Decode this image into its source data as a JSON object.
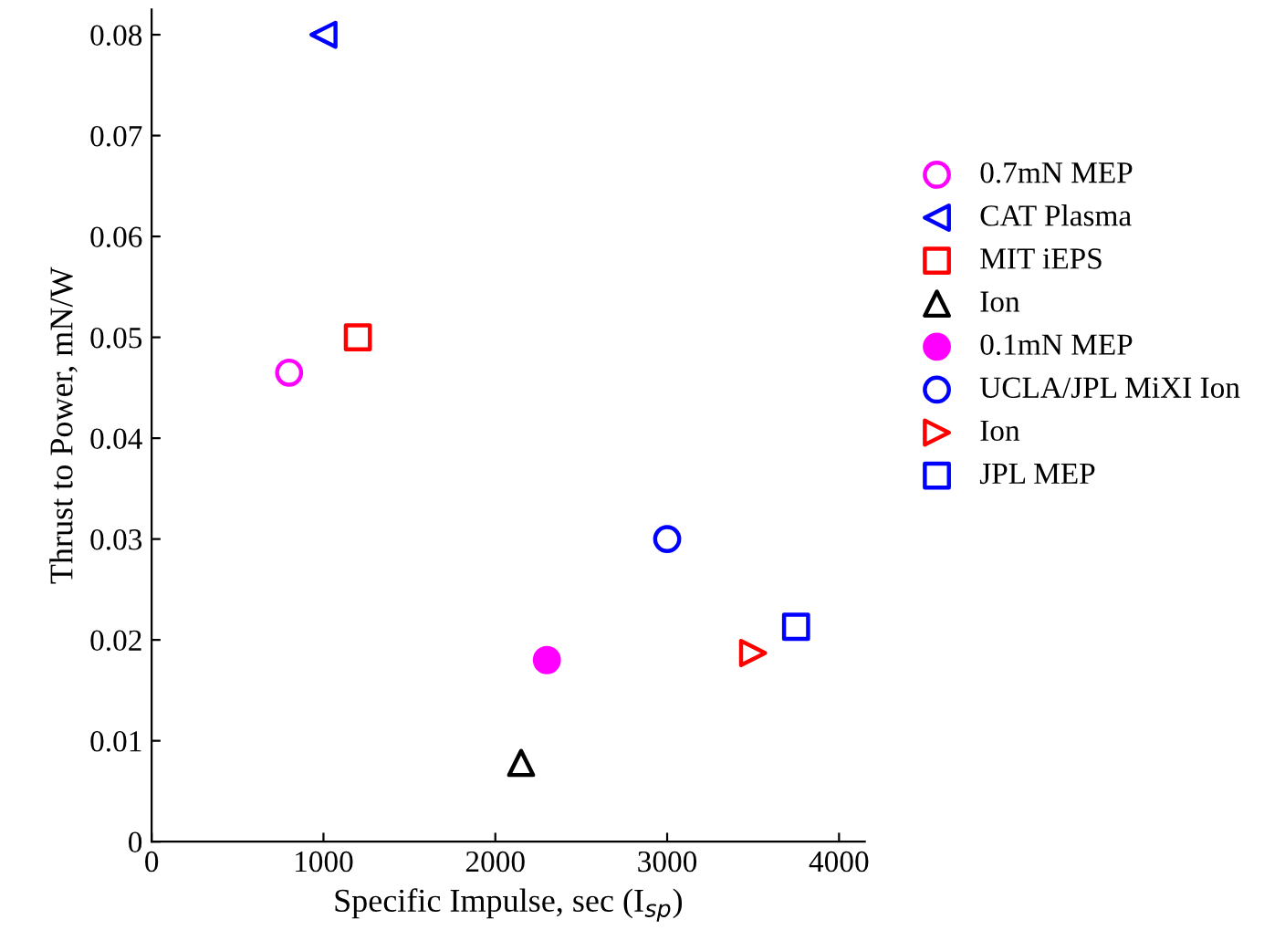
{
  "chart_data": {
    "type": "scatter",
    "xlabel": "Specific Impulse, sec (I$_{sp}$)",
    "ylabel": "Thrust to Power, mN/W",
    "xlim": [
      0,
      4150
    ],
    "ylim": [
      0,
      0.0825
    ],
    "xticks": [
      0,
      1000,
      2000,
      3000,
      4000
    ],
    "yticks": [
      0,
      0.01,
      0.02,
      0.03,
      0.04,
      0.05,
      0.06,
      0.07,
      0.08
    ],
    "legend": "right",
    "grid": false,
    "series": [
      {
        "name": "0.7mN MEP",
        "color": "#ff00ff",
        "marker": "circle",
        "x": [
          800
        ],
        "values": [
          0.0465
        ]
      },
      {
        "name": "CAT Plasma",
        "color": "#0000ff",
        "marker": "triangle_left",
        "x": [
          1000
        ],
        "values": [
          0.08
        ]
      },
      {
        "name": "MIT iEPS",
        "color": "#ff0000",
        "marker": "square",
        "x": [
          1200
        ],
        "values": [
          0.05
        ]
      },
      {
        "name": "Ion",
        "color": "#000000",
        "marker": "triangle",
        "x": [
          2150
        ],
        "values": [
          0.0078
        ]
      },
      {
        "name": "0.1mN MEP",
        "color": "#ff00ff",
        "marker": "filled_circle",
        "x": [
          2300
        ],
        "values": [
          0.018
        ]
      },
      {
        "name": "UCLA/JPL MiXI Ion",
        "color": "#0000ff",
        "marker": "circle",
        "x": [
          3000
        ],
        "values": [
          0.03
        ]
      },
      {
        "name": "Ion",
        "color": "#ff0000",
        "marker": "triangle_right",
        "x": [
          3500
        ],
        "values": [
          0.0187
        ]
      },
      {
        "name": "JPL MEP",
        "color": "#0000ff",
        "marker": "square",
        "x": [
          3750
        ],
        "values": [
          0.0213
        ]
      }
    ]
  }
}
